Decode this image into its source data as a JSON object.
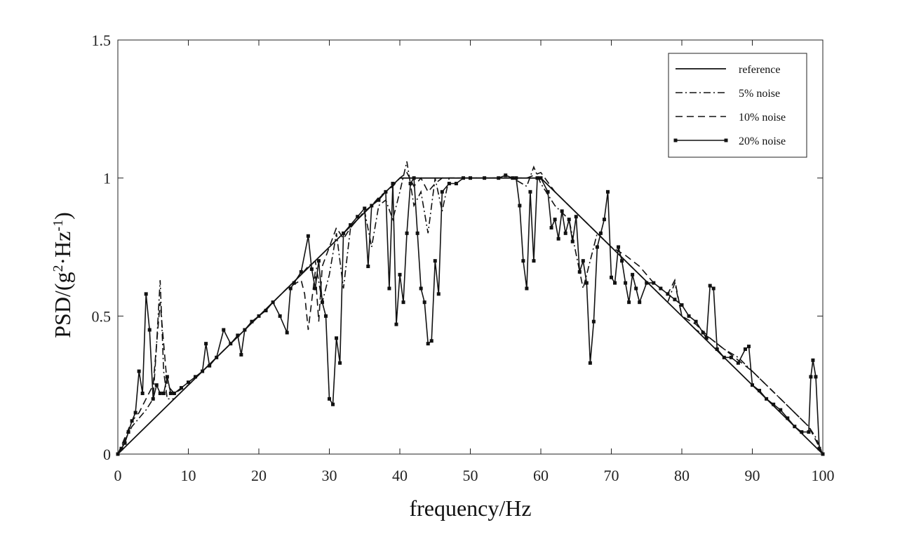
{
  "chart_data": {
    "type": "line",
    "xlabel": "frequency/Hz",
    "ylabel_main": "PSD/(g",
    "ylabel_sup1": "2",
    "ylabel_mid": "·Hz",
    "ylabel_sup2": "-1",
    "ylabel_end": ")",
    "xlim": [
      0,
      100
    ],
    "ylim": [
      0,
      1.5
    ],
    "x_ticks": [
      0,
      10,
      20,
      30,
      40,
      50,
      60,
      70,
      80,
      90,
      100
    ],
    "y_ticks": [
      0,
      0.5,
      1,
      1.5
    ],
    "x_tick_labels": [
      "0",
      "10",
      "20",
      "30",
      "40",
      "50",
      "60",
      "70",
      "80",
      "90",
      "100"
    ],
    "y_tick_labels": [
      "0",
      "0.5",
      "1",
      "1.5"
    ],
    "grid": false,
    "legend_position": "top-right",
    "series": [
      {
        "name": "reference",
        "style": "solid",
        "x": [
          0,
          40,
          60,
          100
        ],
        "y": [
          0,
          1.0,
          1.0,
          0
        ]
      },
      {
        "name": "5% noise",
        "style": "dashdot",
        "x": [
          0,
          1,
          2,
          3,
          4,
          5,
          5.5,
          6,
          6.5,
          7,
          8,
          10,
          12,
          14,
          16,
          18,
          20,
          22,
          24,
          26,
          27,
          28,
          29,
          30,
          31,
          32,
          33,
          34,
          35,
          36,
          37,
          38,
          39,
          40,
          41,
          42,
          43,
          44,
          45,
          46,
          47,
          48,
          50,
          52,
          54,
          56,
          58,
          59,
          60,
          62,
          64,
          66,
          68,
          70,
          72,
          74,
          76,
          78,
          79,
          80,
          82,
          84,
          86,
          88,
          90,
          92,
          94,
          96,
          98,
          99,
          100
        ],
        "y": [
          0,
          0.05,
          0.1,
          0.13,
          0.16,
          0.2,
          0.4,
          0.63,
          0.3,
          0.2,
          0.2,
          0.25,
          0.3,
          0.35,
          0.4,
          0.45,
          0.5,
          0.55,
          0.6,
          0.65,
          0.68,
          0.7,
          0.55,
          0.65,
          0.8,
          0.6,
          0.82,
          0.85,
          0.88,
          0.75,
          0.9,
          0.92,
          0.85,
          0.95,
          1.06,
          0.9,
          0.95,
          0.8,
          1.0,
          0.88,
          1.0,
          1.0,
          1.0,
          1.0,
          1.0,
          1.0,
          0.97,
          1.04,
          0.98,
          0.9,
          0.85,
          0.6,
          0.8,
          0.75,
          0.7,
          0.65,
          0.6,
          0.55,
          0.62,
          0.5,
          0.45,
          0.42,
          0.38,
          0.35,
          0.3,
          0.25,
          0.2,
          0.15,
          0.1,
          0.06,
          0
        ]
      },
      {
        "name": "10% noise",
        "style": "dashed",
        "x": [
          0,
          1,
          2,
          3,
          4,
          5,
          6,
          7,
          8,
          10,
          12,
          14,
          16,
          18,
          20,
          22,
          24,
          26,
          26.5,
          27,
          28,
          28.5,
          29,
          30,
          31,
          32,
          33,
          34,
          35,
          36,
          37,
          38,
          39,
          40,
          41,
          42,
          43,
          44,
          45,
          46,
          47,
          48,
          50,
          52,
          54,
          56,
          58,
          60,
          62,
          64,
          66,
          68,
          70,
          72,
          74,
          76,
          78,
          79,
          80,
          82,
          84,
          86,
          88,
          90,
          92,
          94,
          96,
          98,
          99,
          100
        ],
        "y": [
          0,
          0.06,
          0.12,
          0.15,
          0.2,
          0.25,
          0.55,
          0.25,
          0.22,
          0.25,
          0.3,
          0.35,
          0.4,
          0.45,
          0.5,
          0.55,
          0.6,
          0.63,
          0.58,
          0.45,
          0.66,
          0.48,
          0.68,
          0.75,
          0.82,
          0.78,
          0.82,
          0.85,
          0.88,
          0.9,
          0.93,
          0.95,
          0.97,
          1.0,
          1.02,
          0.97,
          1.0,
          0.95,
          0.98,
          1.0,
          1.0,
          1.0,
          1.0,
          1.0,
          1.0,
          1.0,
          1.0,
          1.02,
          0.95,
          0.9,
          0.85,
          0.8,
          0.75,
          0.72,
          0.68,
          0.62,
          0.58,
          0.63,
          0.5,
          0.47,
          0.42,
          0.38,
          0.34,
          0.3,
          0.25,
          0.2,
          0.15,
          0.1,
          0.05,
          0
        ]
      },
      {
        "name": "20% noise",
        "style": "solid-square-markers",
        "x": [
          0,
          0.5,
          1,
          1.5,
          2,
          2.5,
          3,
          3.5,
          4,
          4.5,
          5,
          5.5,
          6,
          6.5,
          7,
          7.5,
          8,
          9,
          10,
          11,
          12,
          12.5,
          13,
          14,
          15,
          16,
          17,
          17.5,
          18,
          19,
          20,
          21,
          22,
          23,
          24,
          24.5,
          25,
          26,
          27,
          27.5,
          28,
          28.5,
          29,
          29.5,
          30,
          30.5,
          31,
          31.5,
          32,
          33,
          34,
          35,
          35.5,
          36,
          37,
          38,
          38.5,
          39,
          39.5,
          40,
          40.5,
          41,
          41.5,
          42,
          42.5,
          43,
          43.5,
          44,
          44.5,
          45,
          45.5,
          46,
          47,
          48,
          49,
          50,
          52,
          54,
          55,
          56,
          56.5,
          57,
          57.5,
          58,
          58.5,
          59,
          59.5,
          60,
          61,
          61.5,
          62,
          62.5,
          63,
          63.5,
          64,
          64.5,
          65,
          65.5,
          66,
          66.5,
          67,
          67.5,
          68,
          68.5,
          69,
          69.5,
          70,
          70.5,
          71,
          71.5,
          72,
          72.5,
          73,
          73.5,
          74,
          75,
          76,
          77,
          78,
          79,
          80,
          81,
          82,
          83,
          83.5,
          84,
          84.5,
          85,
          86,
          87,
          88,
          89,
          89.5,
          90,
          91,
          92,
          93,
          94,
          95,
          96,
          97,
          98,
          98.3,
          98.6,
          99,
          99.5,
          100
        ],
        "y": [
          0,
          0.02,
          0.04,
          0.08,
          0.12,
          0.15,
          0.3,
          0.22,
          0.58,
          0.45,
          0.2,
          0.25,
          0.22,
          0.22,
          0.28,
          0.22,
          0.22,
          0.24,
          0.26,
          0.28,
          0.3,
          0.4,
          0.32,
          0.35,
          0.45,
          0.4,
          0.43,
          0.36,
          0.45,
          0.48,
          0.5,
          0.52,
          0.55,
          0.5,
          0.44,
          0.6,
          0.62,
          0.66,
          0.79,
          0.67,
          0.6,
          0.7,
          0.55,
          0.5,
          0.2,
          0.18,
          0.42,
          0.33,
          0.8,
          0.83,
          0.86,
          0.89,
          0.68,
          0.9,
          0.92,
          0.95,
          0.6,
          0.98,
          0.47,
          0.65,
          0.55,
          0.8,
          0.98,
          1.0,
          0.8,
          0.6,
          0.55,
          0.4,
          0.41,
          0.7,
          0.58,
          0.95,
          0.98,
          0.98,
          1.0,
          1.0,
          1.0,
          1.0,
          1.01,
          1.0,
          1.0,
          0.9,
          0.7,
          0.6,
          0.95,
          0.7,
          1.0,
          1.0,
          0.95,
          0.82,
          0.85,
          0.78,
          0.88,
          0.8,
          0.85,
          0.77,
          0.86,
          0.66,
          0.7,
          0.62,
          0.33,
          0.48,
          0.75,
          0.8,
          0.85,
          0.95,
          0.64,
          0.62,
          0.75,
          0.7,
          0.62,
          0.55,
          0.65,
          0.6,
          0.55,
          0.62,
          0.62,
          0.6,
          0.58,
          0.56,
          0.54,
          0.5,
          0.48,
          0.44,
          0.42,
          0.61,
          0.6,
          0.38,
          0.35,
          0.35,
          0.33,
          0.38,
          0.39,
          0.25,
          0.23,
          0.2,
          0.18,
          0.16,
          0.13,
          0.1,
          0.08,
          0.08,
          0.28,
          0.34,
          0.28,
          0.02,
          0
        ]
      }
    ]
  }
}
